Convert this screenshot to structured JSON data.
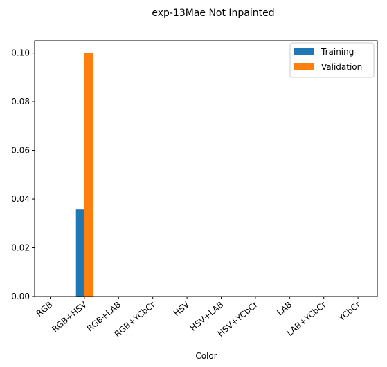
{
  "chart_data": {
    "type": "bar",
    "title": "exp-13Mae Not Inpainted",
    "xlabel": "Color",
    "ylabel": "",
    "categories": [
      "RGB",
      "RGB+HSV",
      "RGB+LAB",
      "RGB+YCbCr",
      "HSV",
      "HSV+LAB",
      "HSV+YCbCr",
      "LAB",
      "LAB+YCbCr",
      "YCbCr"
    ],
    "series": [
      {
        "name": "Training",
        "color": "#1f77b4",
        "values": [
          0,
          0.0357,
          0,
          0,
          0,
          0,
          0,
          0,
          0,
          0
        ]
      },
      {
        "name": "Validation",
        "color": "#ff7f0e",
        "values": [
          0,
          0.1,
          0,
          0,
          0,
          0,
          0,
          0,
          0,
          0
        ]
      }
    ],
    "ylim": [
      0,
      0.105
    ],
    "yticks": [
      0.0,
      0.02,
      0.04,
      0.06,
      0.08,
      0.1
    ],
    "ytick_labels": [
      "0.00",
      "0.02",
      "0.04",
      "0.06",
      "0.08",
      "0.10"
    ],
    "grid": false,
    "legend_position": "top-right"
  }
}
